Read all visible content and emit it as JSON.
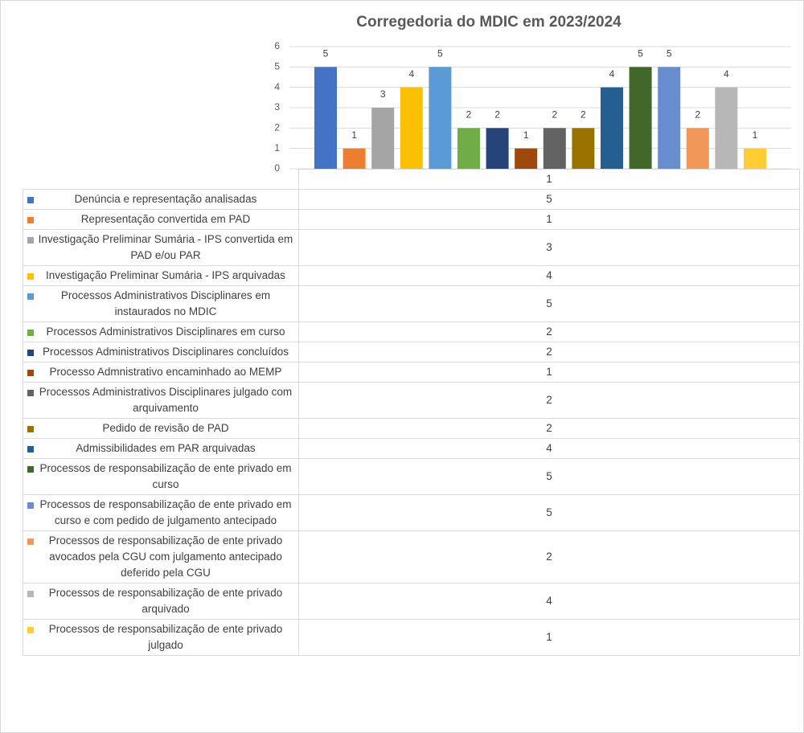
{
  "chart_data": {
    "type": "bar",
    "title": "Corregedoria do MDIC em 2023/2024",
    "categories": [
      "1"
    ],
    "ylim": [
      0,
      6
    ],
    "yticks": [
      0,
      1,
      2,
      3,
      4,
      5,
      6
    ],
    "grid": true,
    "data_table": true,
    "series": [
      {
        "name": "Denúncia e representação analisadas",
        "color": "#4472c4",
        "values": [
          5
        ]
      },
      {
        "name": "Representação convertida em PAD",
        "color": "#ed7d31",
        "values": [
          1
        ]
      },
      {
        "name": "Investigação Preliminar Sumária - IPS convertida em PAD e/ou PAR",
        "color": "#a5a5a5",
        "values": [
          3
        ]
      },
      {
        "name": "Investigação Preliminar Sumária - IPS arquivadas",
        "color": "#ffc000",
        "values": [
          4
        ]
      },
      {
        "name": "Processos Administrativos Disciplinares em instaurados no MDIC",
        "color": "#5b9bd5",
        "values": [
          5
        ]
      },
      {
        "name": "Processos Administrativos Disciplinares em curso",
        "color": "#70ad47",
        "values": [
          2
        ]
      },
      {
        "name": "Processos Administrativos Disciplinares concluídos",
        "color": "#264478",
        "values": [
          2
        ]
      },
      {
        "name": "Processo Admnistrativo encaminhado ao MEMP",
        "color": "#9e480e",
        "values": [
          1
        ]
      },
      {
        "name": "Processos Administrativos Disciplinares julgado com arquivamento",
        "color": "#636363",
        "values": [
          2
        ]
      },
      {
        "name": "Pedido de revisão de PAD",
        "color": "#997300",
        "values": [
          2
        ]
      },
      {
        "name": "Admissibilidades em PAR arquivadas",
        "color": "#255e91",
        "values": [
          4
        ]
      },
      {
        "name": "Processos de responsabilização de ente privado em curso",
        "color": "#43682b",
        "values": [
          5
        ]
      },
      {
        "name": "Processos de responsabilização de ente privado em curso e com pedido de julgamento antecipado",
        "color": "#698ed0",
        "values": [
          5
        ]
      },
      {
        "name": "Processos de responsabilização de ente privado avocados pela CGU com julgamento antecipado deferido pela CGU",
        "color": "#f1975a",
        "values": [
          2
        ]
      },
      {
        "name": "Processos de responsabilização de ente privado arquivado",
        "color": "#b7b7b7",
        "values": [
          4
        ]
      },
      {
        "name": "Processos de responsabilização de ente privado julgado",
        "color": "#ffcd33",
        "values": [
          1
        ]
      }
    ]
  }
}
